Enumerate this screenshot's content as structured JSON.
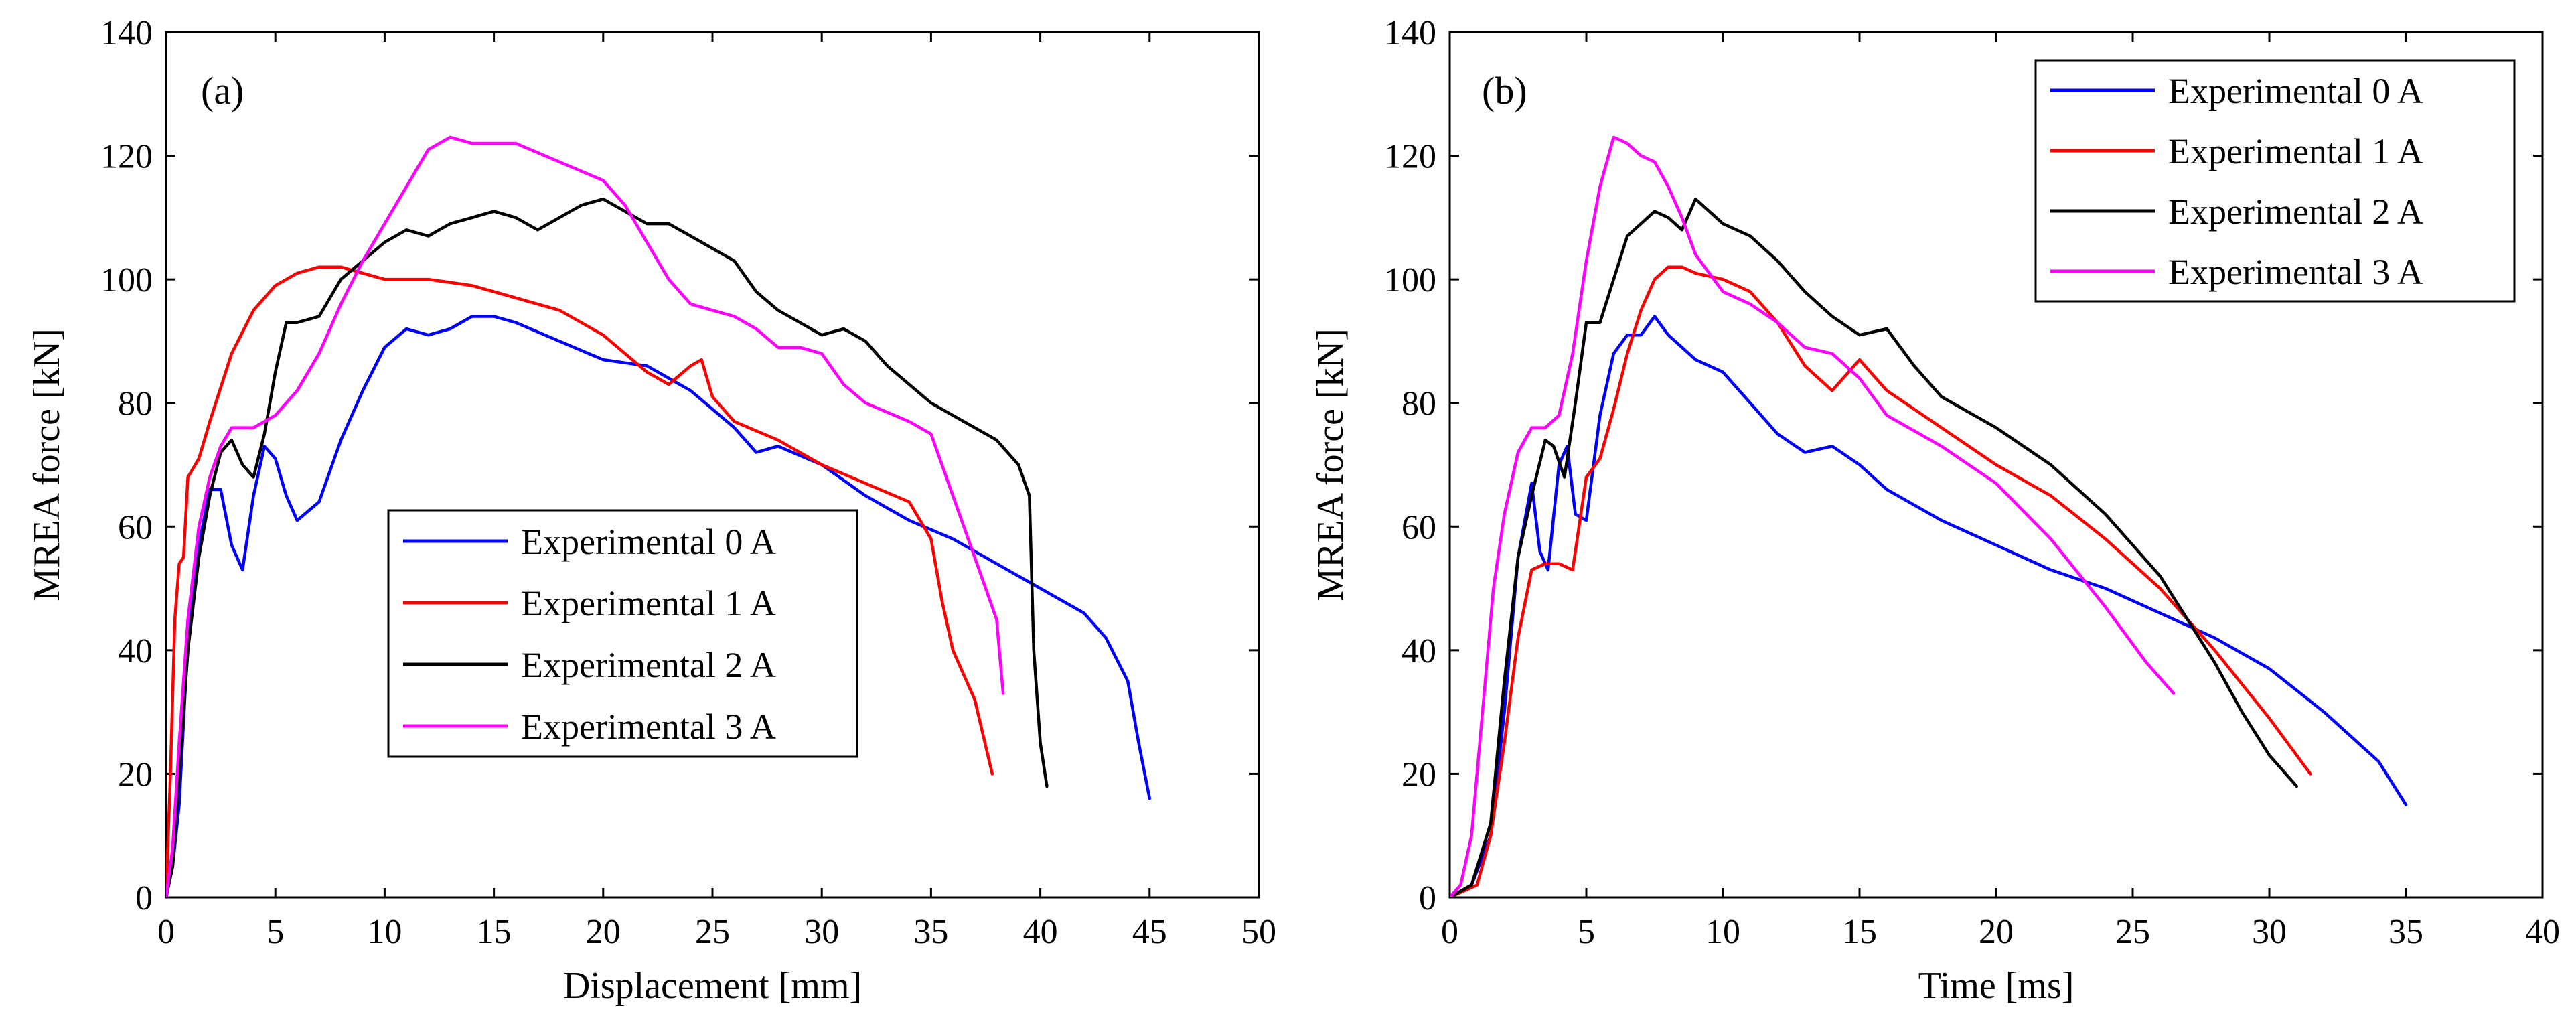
{
  "chart_data": [
    {
      "type": "line",
      "panel_label": "(a)",
      "title": "",
      "xlabel": "Displacement [mm]",
      "ylabel": "MREA force [kN]",
      "xlim": [
        0,
        50
      ],
      "ylim": [
        0,
        140
      ],
      "xticks": [
        0,
        5,
        10,
        15,
        20,
        25,
        30,
        35,
        40,
        45,
        50
      ],
      "yticks": [
        0,
        20,
        40,
        60,
        80,
        100,
        120,
        140
      ],
      "grid": false,
      "legend_position": "center-lower",
      "series": [
        {
          "name": "Experimental 0 A",
          "color": "#0000ff",
          "x": [
            0,
            0.3,
            0.6,
            0.9,
            1.2,
            1.5,
            2.0,
            2.5,
            3.0,
            3.5,
            4.0,
            4.5,
            5.0,
            5.5,
            6.0,
            7.0,
            8.0,
            9.0,
            10.0,
            11.0,
            12.0,
            13.0,
            14.0,
            15.0,
            16.0,
            18.0,
            20.0,
            22.0,
            24.0,
            26.0,
            27.0,
            28.0,
            30.0,
            32.0,
            34.0,
            36.0,
            38.0,
            40.0,
            42.0,
            43.0,
            44.0,
            44.5,
            45.0
          ],
          "y": [
            0,
            5,
            15,
            35,
            50,
            57,
            66,
            66,
            57,
            53,
            65,
            73,
            71,
            65,
            61,
            64,
            74,
            82,
            89,
            92,
            91,
            92,
            94,
            94,
            93,
            90,
            87,
            86,
            82,
            76,
            72,
            73,
            70,
            65,
            61,
            58,
            54,
            50,
            46,
            42,
            35,
            25,
            16
          ]
        },
        {
          "name": "Experimental 1 A",
          "color": "#ff0000",
          "x": [
            0,
            0.2,
            0.4,
            0.6,
            0.8,
            1.0,
            1.5,
            2.0,
            3.0,
            4.0,
            5.0,
            6.0,
            7.0,
            8.0,
            9.0,
            10.0,
            12.0,
            14.0,
            16.0,
            18.0,
            20.0,
            22.0,
            23.0,
            24.0,
            24.5,
            25.0,
            26.0,
            28.0,
            30.0,
            32.0,
            34.0,
            35.0,
            35.5,
            36.0,
            37.0,
            37.8
          ],
          "y": [
            0,
            20,
            45,
            54,
            55,
            68,
            71,
            77,
            88,
            95,
            99,
            101,
            102,
            102,
            101,
            100,
            100,
            99,
            97,
            95,
            91,
            85,
            83,
            86,
            87,
            81,
            77,
            74,
            70,
            67,
            64,
            58,
            48,
            40,
            32,
            20
          ]
        },
        {
          "name": "Experimental 2 A",
          "color": "#000000",
          "x": [
            0,
            0.3,
            0.6,
            1.0,
            1.5,
            2.0,
            2.5,
            3.0,
            3.5,
            4.0,
            4.5,
            5.0,
            5.5,
            6.0,
            7.0,
            8.0,
            9.0,
            10.0,
            11.0,
            12.0,
            13.0,
            14.0,
            15.0,
            16.0,
            17.0,
            18.0,
            19.0,
            20.0,
            21.0,
            22.0,
            23.0,
            24.0,
            25.0,
            26.0,
            27.0,
            28.0,
            29.0,
            30.0,
            31.0,
            32.0,
            33.0,
            34.0,
            35.0,
            36.0,
            37.0,
            38.0,
            39.0,
            39.5,
            39.7,
            40.0,
            40.3
          ],
          "y": [
            0,
            5,
            20,
            40,
            55,
            65,
            72,
            74,
            70,
            68,
            75,
            85,
            93,
            93,
            94,
            100,
            103,
            106,
            108,
            107,
            109,
            110,
            111,
            110,
            108,
            110,
            112,
            113,
            111,
            109,
            109,
            107,
            105,
            103,
            98,
            95,
            93,
            91,
            92,
            90,
            86,
            83,
            80,
            78,
            76,
            74,
            70,
            65,
            40,
            25,
            18
          ]
        },
        {
          "name": "Experimental 3 A",
          "color": "#ff00ff",
          "x": [
            0,
            0.3,
            0.6,
            1.0,
            1.5,
            2.0,
            2.5,
            3.0,
            4.0,
            5.0,
            6.0,
            7.0,
            8.0,
            9.0,
            10.0,
            11.0,
            12.0,
            13.0,
            14.0,
            16.0,
            18.0,
            20.0,
            21.0,
            22.0,
            23.0,
            24.0,
            25.0,
            26.0,
            27.0,
            28.0,
            29.0,
            30.0,
            31.0,
            32.0,
            34.0,
            35.0,
            36.0,
            37.0,
            38.0,
            38.3
          ],
          "y": [
            0,
            8,
            25,
            45,
            60,
            68,
            73,
            76,
            76,
            78,
            82,
            88,
            96,
            103,
            109,
            115,
            121,
            123,
            122,
            122,
            119,
            116,
            112,
            106,
            100,
            96,
            95,
            94,
            92,
            89,
            89,
            88,
            83,
            80,
            77,
            75,
            65,
            55,
            45,
            33
          ]
        }
      ]
    },
    {
      "type": "line",
      "panel_label": "(b)",
      "title": "",
      "xlabel": "Time [ms]",
      "ylabel": "MREA force [kN]",
      "xlim": [
        0,
        40
      ],
      "ylim": [
        0,
        140
      ],
      "xticks": [
        0,
        5,
        10,
        15,
        20,
        25,
        30,
        35,
        40
      ],
      "yticks": [
        0,
        20,
        40,
        60,
        80,
        100,
        120,
        140
      ],
      "grid": false,
      "legend_position": "top-right",
      "series": [
        {
          "name": "Experimental 0 A",
          "color": "#0000ff",
          "x": [
            0,
            0.8,
            1.5,
            2.0,
            2.5,
            3.0,
            3.3,
            3.6,
            4.0,
            4.3,
            4.6,
            5.0,
            5.5,
            6.0,
            6.5,
            7.0,
            7.5,
            8.0,
            9.0,
            10.0,
            11.0,
            12.0,
            13.0,
            14.0,
            15.0,
            16.0,
            18.0,
            20.0,
            22.0,
            24.0,
            26.0,
            28.0,
            30.0,
            32.0,
            34.0,
            35.0
          ],
          "y": [
            0,
            2,
            10,
            30,
            55,
            67,
            56,
            53,
            70,
            73,
            62,
            61,
            78,
            88,
            91,
            91,
            94,
            91,
            87,
            85,
            80,
            75,
            72,
            73,
            70,
            66,
            61,
            57,
            53,
            50,
            46,
            42,
            37,
            30,
            22,
            15
          ]
        },
        {
          "name": "Experimental 1 A",
          "color": "#ff0000",
          "x": [
            0,
            1.0,
            1.5,
            2.0,
            2.5,
            3.0,
            3.5,
            4.0,
            4.5,
            5.0,
            5.5,
            6.0,
            6.5,
            7.0,
            7.5,
            8.0,
            8.5,
            9.0,
            10.0,
            11.0,
            12.0,
            13.0,
            14.0,
            15.0,
            16.0,
            18.0,
            20.0,
            22.0,
            24.0,
            26.0,
            28.0,
            30.0,
            31.5
          ],
          "y": [
            0,
            2,
            10,
            25,
            42,
            53,
            54,
            54,
            53,
            68,
            71,
            79,
            88,
            95,
            100,
            102,
            102,
            101,
            100,
            98,
            93,
            86,
            82,
            87,
            82,
            76,
            70,
            65,
            58,
            50,
            40,
            29,
            20
          ]
        },
        {
          "name": "Experimental 2 A",
          "color": "#000000",
          "x": [
            0,
            0.8,
            1.5,
            2.0,
            2.5,
            3.0,
            3.5,
            3.8,
            4.2,
            4.6,
            5.0,
            5.5,
            6.0,
            6.5,
            7.0,
            7.5,
            8.0,
            8.5,
            9.0,
            9.5,
            10.0,
            11.0,
            12.0,
            13.0,
            14.0,
            15.0,
            16.0,
            17.0,
            18.0,
            20.0,
            22.0,
            24.0,
            26.0,
            28.0,
            29.0,
            30.0,
            31.0
          ],
          "y": [
            0,
            2,
            12,
            35,
            55,
            65,
            74,
            73,
            68,
            80,
            93,
            93,
            100,
            107,
            109,
            111,
            110,
            108,
            113,
            111,
            109,
            107,
            103,
            98,
            94,
            91,
            92,
            86,
            81,
            76,
            70,
            62,
            52,
            38,
            30,
            23,
            18
          ]
        },
        {
          "name": "Experimental 3 A",
          "color": "#ff00ff",
          "x": [
            0,
            0.4,
            0.8,
            1.2,
            1.6,
            2.0,
            2.5,
            3.0,
            3.5,
            4.0,
            4.5,
            5.0,
            5.5,
            6.0,
            6.5,
            7.0,
            7.5,
            8.0,
            8.5,
            9.0,
            10.0,
            11.0,
            12.0,
            13.0,
            14.0,
            15.0,
            16.0,
            18.0,
            20.0,
            22.0,
            24.0,
            25.5,
            26.5
          ],
          "y": [
            0,
            2,
            10,
            30,
            50,
            62,
            72,
            76,
            76,
            78,
            88,
            103,
            115,
            123,
            122,
            120,
            119,
            115,
            110,
            104,
            98,
            96,
            93,
            89,
            88,
            84,
            78,
            73,
            67,
            58,
            47,
            38,
            33
          ]
        }
      ]
    }
  ]
}
